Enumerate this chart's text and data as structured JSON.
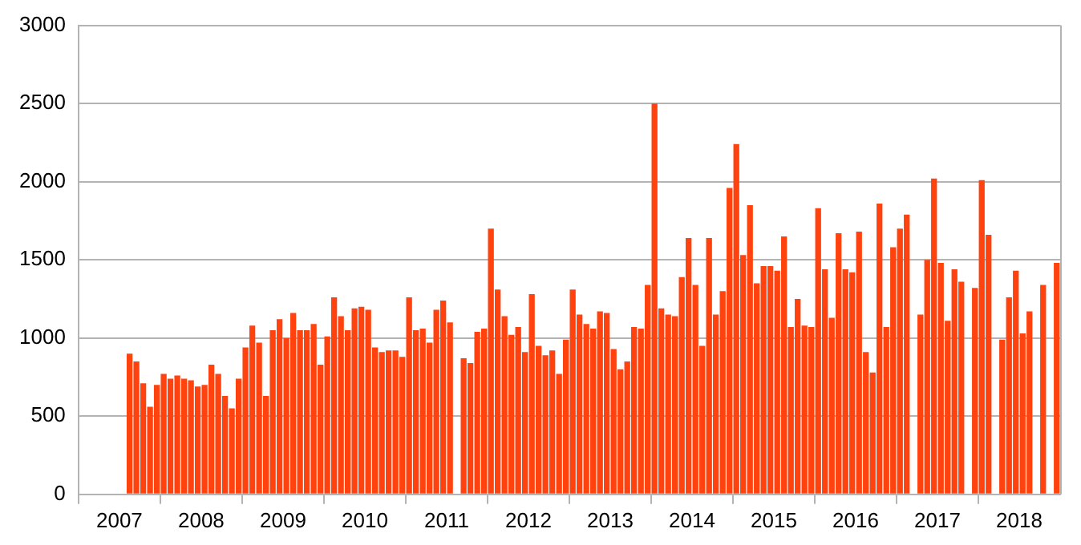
{
  "chart_data": {
    "type": "bar",
    "categories": [
      null,
      null,
      null,
      null,
      null,
      null,
      "2007",
      null,
      null,
      null,
      null,
      null,
      null,
      null,
      null,
      null,
      null,
      null,
      "2008",
      null,
      null,
      null,
      null,
      null,
      null,
      null,
      null,
      null,
      null,
      null,
      "2009",
      null,
      null,
      null,
      null,
      null,
      null,
      null,
      null,
      null,
      null,
      null,
      "2010",
      null,
      null,
      null,
      null,
      null,
      null,
      null,
      null,
      null,
      null,
      null,
      "2011",
      null,
      null,
      null,
      null,
      null,
      null,
      null,
      null,
      null,
      null,
      null,
      "2012",
      null,
      null,
      null,
      null,
      null,
      null,
      null,
      null,
      null,
      null,
      null,
      "2013",
      null,
      null,
      null,
      null,
      null,
      null,
      null,
      null,
      null,
      null,
      null,
      "2014",
      null,
      null,
      null,
      null,
      null,
      null,
      null,
      null,
      null,
      null,
      null,
      "2015",
      null,
      null,
      null,
      null,
      null,
      null,
      null,
      null,
      null,
      null,
      null,
      "2016",
      null,
      null,
      null,
      null,
      null,
      null,
      null,
      null,
      null,
      null,
      null,
      "2017",
      null,
      null,
      null,
      null,
      null,
      null,
      null,
      null,
      null,
      null,
      null,
      "2018",
      null,
      null,
      null,
      null,
      null
    ],
    "values": [
      null,
      null,
      null,
      null,
      null,
      null,
      null,
      900,
      850,
      710,
      560,
      700,
      770,
      740,
      760,
      740,
      730,
      690,
      700,
      830,
      770,
      630,
      550,
      740,
      940,
      1080,
      970,
      630,
      1050,
      1120,
      1000,
      1160,
      1050,
      1050,
      1090,
      830,
      1010,
      1260,
      1140,
      1050,
      1190,
      1200,
      1180,
      940,
      910,
      920,
      920,
      880,
      1260,
      1050,
      1060,
      970,
      1180,
      1240,
      1100,
      null,
      870,
      840,
      1040,
      1060,
      1700,
      1310,
      1140,
      1020,
      1070,
      910,
      1280,
      950,
      890,
      920,
      770,
      990,
      1310,
      1150,
      1090,
      1060,
      1170,
      1160,
      930,
      800,
      850,
      1070,
      1060,
      1340,
      2500,
      1190,
      1150,
      1140,
      1390,
      1640,
      1340,
      950,
      1640,
      1150,
      1300,
      1960,
      2240,
      1530,
      1850,
      1350,
      1460,
      1460,
      1430,
      1650,
      1070,
      1250,
      1080,
      1070,
      1830,
      1440,
      1130,
      1670,
      1440,
      1420,
      1680,
      910,
      780,
      1860,
      1070,
      1580,
      1700,
      1790,
      null,
      1150,
      1500,
      2020,
      1480,
      1110,
      1440,
      1360,
      null,
      1320,
      2010,
      1660,
      null,
      990,
      1260,
      1430,
      1030,
      1170,
      null,
      1340,
      null,
      1480
    ],
    "color": "#ff420e",
    "ylim": [
      0,
      3000
    ],
    "yticks": [
      0,
      500,
      1000,
      1500,
      2000,
      2500,
      3000
    ],
    "grid": "y"
  }
}
